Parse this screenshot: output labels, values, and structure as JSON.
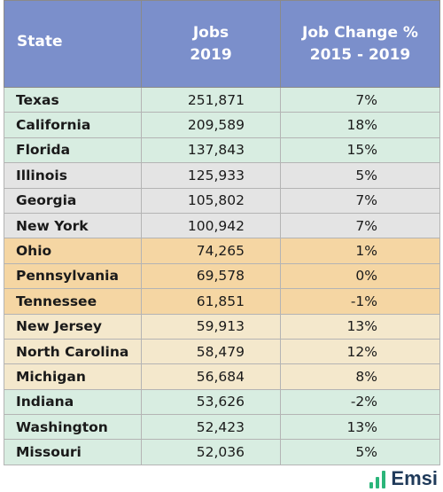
{
  "header": {
    "state": "State",
    "jobs_line1": "Jobs",
    "jobs_line2": "2019",
    "change_line1": "Job Change %",
    "change_line2": "2015 - 2019"
  },
  "rows": [
    {
      "state": "Texas",
      "jobs": "251,871",
      "change": "7%"
    },
    {
      "state": "California",
      "jobs": "209,589",
      "change": "18%"
    },
    {
      "state": "Florida",
      "jobs": "137,843",
      "change": "15%"
    },
    {
      "state": "Illinois",
      "jobs": "125,933",
      "change": "5%"
    },
    {
      "state": "Georgia",
      "jobs": "105,802",
      "change": "7%"
    },
    {
      "state": "New York",
      "jobs": "100,942",
      "change": "7%"
    },
    {
      "state": "Ohio",
      "jobs": "74,265",
      "change": "1%"
    },
    {
      "state": "Pennsylvania",
      "jobs": "69,578",
      "change": "0%"
    },
    {
      "state": "Tennessee",
      "jobs": "61,851",
      "change": "-1%"
    },
    {
      "state": "New Jersey",
      "jobs": "59,913",
      "change": "13%"
    },
    {
      "state": "North Carolina",
      "jobs": "58,479",
      "change": "12%"
    },
    {
      "state": "Michigan",
      "jobs": "56,684",
      "change": "8%"
    },
    {
      "state": "Indiana",
      "jobs": "53,626",
      "change": "-2%"
    },
    {
      "state": "Washington",
      "jobs": "52,423",
      "change": "13%"
    },
    {
      "state": "Missouri",
      "jobs": "52,036",
      "change": "5%"
    }
  ],
  "colors": {
    "header": "#7b8fcb",
    "green": "#d8ede1",
    "gray": "#e4e4e4",
    "orange": "#f5d6a3",
    "beige": "#f4e8cc",
    "logo_text": "#1f3a5a",
    "logo_bars": "#2bb57a"
  },
  "logo": {
    "text": "Emsi",
    "icon": "bar-chart-icon"
  }
}
